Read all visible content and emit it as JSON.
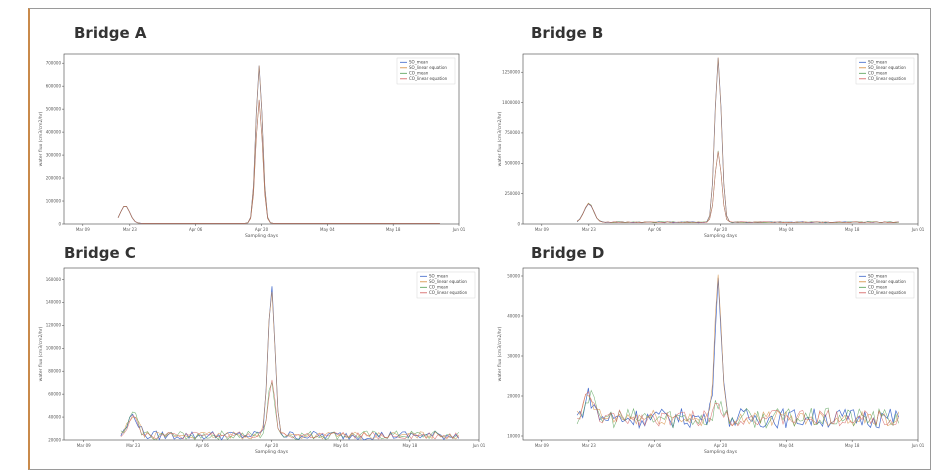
{
  "colors": {
    "so_mean": "#3a63c9",
    "so_linear": "#d48a3a",
    "co_mean": "#4f9c4f",
    "co_linear": "#d25a5a",
    "frame_accent": "#c98a4b"
  },
  "chart_data": [
    {
      "type": "line",
      "title": "Bridge A",
      "xlabel": "Sampling days",
      "ylabel": "water flux (cm3/cm2/hr)",
      "x_ticks": [
        "Mar 09",
        "Mar 23",
        "Apr 06",
        "Apr 20",
        "May 04",
        "May 18",
        "Jun 01"
      ],
      "y_ticks": [
        "0",
        "100000",
        "200000",
        "300000",
        "400000",
        "500000",
        "600000",
        "700000"
      ],
      "ylim": [
        0,
        740000
      ],
      "legend": [
        "SO_mean",
        "SO_linear equation",
        "CO_mean",
        "CO_linear equation"
      ],
      "legend_position": "top-right",
      "grid": false,
      "x_range_days": [
        0,
        84
      ],
      "spikes": [
        {
          "day": 13,
          "value": 80000
        },
        {
          "day": 41.5,
          "value": 690000,
          "secondary": 540000
        }
      ],
      "baseline": 3000,
      "noise": 0
    },
    {
      "type": "line",
      "title": "Bridge B",
      "xlabel": "Sampling days",
      "ylabel": "water flux (cm3/cm2/hr)",
      "x_ticks": [
        "Mar 09",
        "Mar 23",
        "Apr 06",
        "Apr 20",
        "May 04",
        "May 18",
        "Jun 01"
      ],
      "y_ticks": [
        "0",
        "250000",
        "500000",
        "750000",
        "1000000",
        "1250000"
      ],
      "ylim": [
        0,
        1400000
      ],
      "legend": [
        "SO_mean",
        "SO_linear equation",
        "CO_mean",
        "CO_linear equation"
      ],
      "legend_position": "top-right",
      "grid": false,
      "x_range_days": [
        0,
        84
      ],
      "spikes": [
        {
          "day": 14,
          "value": 170000
        },
        {
          "day": 41.5,
          "value": 1370000,
          "secondary": 600000
        }
      ],
      "baseline": 15000,
      "noise": 5000
    },
    {
      "type": "line",
      "title": "Bridge C",
      "xlabel": "Sampling days",
      "ylabel": "water flux (cm3/cm2/hr)",
      "x_ticks": [
        "Mar 09",
        "Mar 23",
        "Apr 06",
        "Apr 20",
        "May 04",
        "May 18",
        "Jun 01"
      ],
      "y_ticks": [
        "20000",
        "40000",
        "60000",
        "80000",
        "100000",
        "120000",
        "140000",
        "160000"
      ],
      "ylim": [
        20000,
        170000
      ],
      "legend": [
        "SO_mean",
        "SO_linear equation",
        "CO_mean",
        "CO_linear equation"
      ],
      "legend_position": "top-right",
      "grid": false,
      "x_range_days": [
        0,
        84
      ],
      "spikes": [
        {
          "day": 14,
          "value": 42000
        },
        {
          "day": 42,
          "value": 152000,
          "secondary": 70000
        }
      ],
      "baseline": 24000,
      "noise": 4000
    },
    {
      "type": "line",
      "title": "Bridge D",
      "xlabel": "Sampling days",
      "ylabel": "water flux (cm3/cm2/hr)",
      "x_ticks": [
        "Mar 09",
        "Mar 23",
        "Apr 06",
        "Apr 20",
        "May 04",
        "May 18",
        "Jun 01"
      ],
      "y_ticks": [
        "10000",
        "20000",
        "30000",
        "40000",
        "50000"
      ],
      "ylim": [
        9000,
        52000
      ],
      "legend": [
        "SO_mean",
        "SO_linear equation",
        "CO_mean",
        "CO_linear equation"
      ],
      "legend_position": "top-right",
      "grid": false,
      "x_range_days": [
        0,
        84
      ],
      "spikes": [
        {
          "day": 14,
          "value": 20000
        },
        {
          "day": 41.5,
          "value": 49000,
          "secondary": 19000
        }
      ],
      "baseline": 14500,
      "noise": 2500
    }
  ]
}
